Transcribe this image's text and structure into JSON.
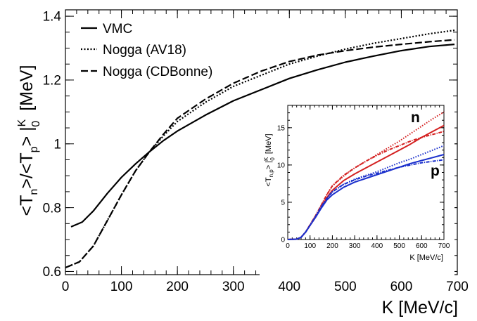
{
  "chart_data": [
    {
      "type": "line",
      "ylabel_parts": {
        "t1": "<T",
        "s1": "n",
        "t2": ">/<T",
        "s2": "p",
        "t3": "> |",
        "sup": "K",
        "sub": "0",
        "unit": "[MeV]"
      },
      "xlabel": "K [MeV/c]",
      "xlim": [
        0,
        700
      ],
      "ylim": [
        0.59,
        1.42
      ],
      "xticks": [
        0,
        100,
        200,
        300,
        400,
        500,
        600,
        700
      ],
      "xtick_labels": [
        "0",
        "100",
        "200",
        "300",
        "400",
        "500",
        "600",
        "700"
      ],
      "yticks": [
        0.6,
        0.8,
        1.0,
        1.2,
        1.4
      ],
      "ytick_labels": [
        "0.6",
        "0.8",
        "1",
        "1.2",
        "1.4"
      ],
      "legend_position": "top-left",
      "series": [
        {
          "name": "VMC",
          "style": "solid",
          "color": "#000000",
          "x": [
            10,
            30,
            50,
            75,
            100,
            125,
            150,
            175,
            200,
            250,
            300,
            350,
            400,
            450,
            500,
            550,
            600,
            650,
            695
          ],
          "y": [
            0.74,
            0.755,
            0.79,
            0.845,
            0.895,
            0.937,
            0.975,
            1.01,
            1.04,
            1.09,
            1.135,
            1.17,
            1.205,
            1.232,
            1.256,
            1.275,
            1.292,
            1.305,
            1.312
          ]
        },
        {
          "name": "Nogga (AV18)",
          "style": "dotted",
          "color": "#000000",
          "x": [
            0,
            25,
            50,
            75,
            100,
            125,
            150,
            175,
            200,
            250,
            300,
            350,
            400,
            450,
            500,
            550,
            600,
            650,
            695
          ],
          "y": [
            0.612,
            0.63,
            0.68,
            0.76,
            0.84,
            0.915,
            0.975,
            1.025,
            1.07,
            1.13,
            1.18,
            1.215,
            1.25,
            1.275,
            1.297,
            1.315,
            1.33,
            1.345,
            1.356
          ]
        },
        {
          "name": "Nogga (CDBonne)",
          "style": "longdash",
          "color": "#000000",
          "x": [
            0,
            25,
            50,
            75,
            100,
            125,
            150,
            175,
            200,
            250,
            300,
            350,
            400,
            450,
            500,
            550,
            600,
            650,
            695
          ],
          "y": [
            0.612,
            0.63,
            0.68,
            0.76,
            0.84,
            0.915,
            0.975,
            1.03,
            1.08,
            1.14,
            1.19,
            1.228,
            1.258,
            1.278,
            1.292,
            1.303,
            1.312,
            1.32,
            1.326
          ]
        }
      ]
    },
    {
      "type": "line",
      "ylabel_parts": {
        "t1": "<T",
        "s1": "n,p",
        "t2": "> |",
        "sup": "K",
        "sub": "0",
        "unit": "[MeV]"
      },
      "xlabel": "K [MeV/c]",
      "xlim": [
        0,
        700
      ],
      "ylim": [
        0,
        18
      ],
      "xticks": [
        0,
        100,
        200,
        300,
        400,
        500,
        600,
        700
      ],
      "xtick_labels": [
        "0",
        "100",
        "200",
        "300",
        "400",
        "500",
        "600",
        "700"
      ],
      "yticks": [
        0,
        5,
        10,
        15
      ],
      "ytick_labels": [
        "0",
        "5",
        "10",
        "15"
      ],
      "annotations": [
        {
          "text": "n",
          "color": "#cc1111"
        },
        {
          "text": "p",
          "color": "#1a2fcc"
        }
      ],
      "series": [
        {
          "name": "n VMC",
          "style": "solid",
          "color": "#d42020",
          "x": [
            0,
            40,
            60,
            80,
            100,
            125,
            150,
            175,
            200,
            250,
            300,
            350,
            400,
            450,
            500,
            550,
            600,
            650,
            700
          ],
          "y": [
            0,
            0.05,
            0.3,
            1.0,
            1.9,
            3.0,
            4.3,
            5.6,
            6.6,
            7.9,
            8.8,
            9.6,
            10.4,
            11.2,
            12.0,
            12.8,
            13.7,
            14.5,
            15.3
          ]
        },
        {
          "name": "n AV18",
          "style": "dotted",
          "color": "#d42020",
          "x": [
            0,
            40,
            60,
            80,
            100,
            125,
            150,
            175,
            200,
            250,
            300,
            350,
            400,
            450,
            500,
            550,
            600,
            650,
            700
          ],
          "y": [
            0,
            0.05,
            0.3,
            1.0,
            2.0,
            3.2,
            4.6,
            6.0,
            7.2,
            8.5,
            9.6,
            10.5,
            11.4,
            12.3,
            13.2,
            14.2,
            15.2,
            16.2,
            17.1
          ]
        },
        {
          "name": "n CDBonne",
          "style": "dashdot",
          "color": "#d42020",
          "x": [
            0,
            40,
            60,
            80,
            100,
            125,
            150,
            175,
            200,
            250,
            300,
            350,
            400,
            450,
            500,
            550,
            600,
            650,
            700
          ],
          "y": [
            0,
            0.05,
            0.3,
            1.0,
            2.0,
            3.2,
            4.6,
            6.0,
            7.2,
            8.6,
            9.6,
            10.5,
            11.3,
            12.0,
            12.6,
            13.2,
            13.7,
            14.1,
            14.5
          ]
        },
        {
          "name": "p VMC",
          "style": "solid",
          "color": "#1a2fcc",
          "x": [
            0,
            40,
            60,
            80,
            100,
            125,
            150,
            175,
            200,
            250,
            300,
            350,
            400,
            450,
            500,
            550,
            600,
            650,
            700
          ],
          "y": [
            0,
            0.05,
            0.3,
            1.0,
            1.9,
            3.0,
            4.2,
            5.3,
            6.0,
            7.0,
            7.7,
            8.2,
            8.7,
            9.2,
            9.7,
            10.2,
            10.6,
            11.0,
            11.4
          ]
        },
        {
          "name": "p AV18",
          "style": "dotted",
          "color": "#1a2fcc",
          "x": [
            0,
            40,
            60,
            80,
            100,
            125,
            150,
            175,
            200,
            250,
            300,
            350,
            400,
            450,
            500,
            550,
            600,
            650,
            700
          ],
          "y": [
            0,
            0.05,
            0.3,
            1.0,
            1.9,
            3.1,
            4.4,
            5.5,
            6.4,
            7.4,
            8.1,
            8.6,
            9.1,
            9.7,
            10.3,
            10.8,
            11.4,
            12.0,
            12.6
          ]
        },
        {
          "name": "p CDBonne",
          "style": "dashdot",
          "color": "#1a2fcc",
          "x": [
            0,
            40,
            60,
            80,
            100,
            125,
            150,
            175,
            200,
            250,
            300,
            350,
            400,
            450,
            500,
            550,
            600,
            650,
            700
          ],
          "y": [
            0,
            0.05,
            0.3,
            1.0,
            1.9,
            3.1,
            4.4,
            5.5,
            6.4,
            7.4,
            8.0,
            8.5,
            8.9,
            9.3,
            9.7,
            10.0,
            10.3,
            10.5,
            10.7
          ]
        }
      ]
    }
  ]
}
